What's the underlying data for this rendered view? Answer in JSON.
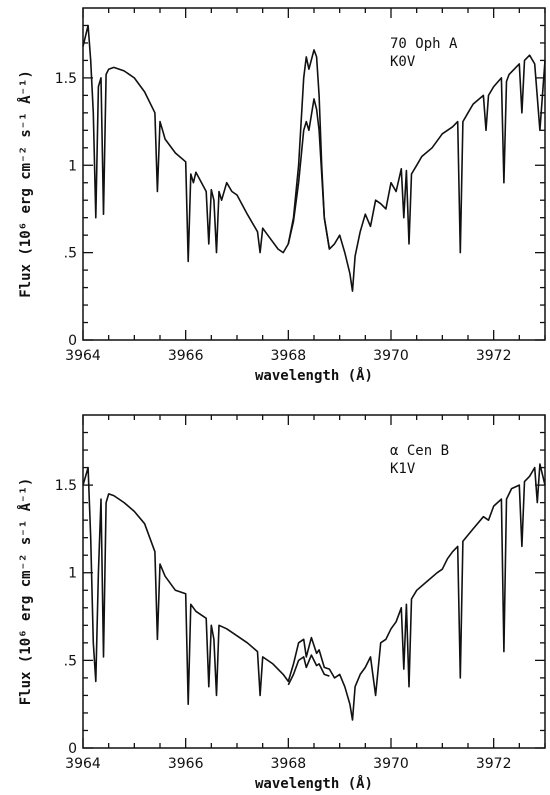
{
  "chart_data": [
    {
      "type": "line",
      "xlabel": "wavelength (Å)",
      "ylabel": "Flux (10⁶ erg cm⁻² s⁻¹ Å⁻¹)",
      "annotation_lines": [
        "70 Oph A",
        "K0V"
      ],
      "xlim": [
        3964,
        3973
      ],
      "ylim": [
        0,
        1.9
      ],
      "xticks": [
        3964,
        3966,
        3968,
        3970,
        3972
      ],
      "xtick_labels": [
        "3964",
        "3966",
        "3968",
        "3970",
        "3972"
      ],
      "yticks": [
        0,
        0.5,
        1,
        1.5
      ],
      "ytick_labels": [
        "0",
        ".5",
        "1",
        "1.5"
      ],
      "grid": false,
      "series": [
        {
          "x": [
            3964.0,
            3964.1,
            3964.15,
            3964.2,
            3964.25,
            3964.3,
            3964.35,
            3964.4,
            3964.45,
            3964.5,
            3964.6,
            3964.8,
            3965.0,
            3965.2,
            3965.4,
            3965.45,
            3965.5,
            3965.55,
            3965.6,
            3965.8,
            3966.0,
            3966.05,
            3966.1,
            3966.15,
            3966.2,
            3966.4,
            3966.45,
            3966.5,
            3966.55,
            3966.6,
            3966.65,
            3966.7,
            3966.8,
            3966.9,
            3967.0,
            3967.2,
            3967.4,
            3967.45,
            3967.5,
            3967.6,
            3967.8,
            3967.9,
            3968.0,
            3968.1,
            3968.2,
            3968.3,
            3968.35,
            3968.4,
            3968.5,
            3968.55,
            3968.6,
            3968.65,
            3968.7,
            3968.8,
            3968.9,
            3969.0,
            3969.1,
            3969.2,
            3969.25,
            3969.3,
            3969.4,
            3969.5,
            3969.6,
            3969.7,
            3969.8,
            3969.9,
            3970.0,
            3970.1,
            3970.2,
            3970.25,
            3970.3,
            3970.35,
            3970.4,
            3970.5,
            3970.6,
            3970.8,
            3971.0,
            3971.1,
            3971.2,
            3971.3,
            3971.35,
            3971.4,
            3971.5,
            3971.6,
            3971.8,
            3971.85,
            3971.9,
            3972.0,
            3972.15,
            3972.2,
            3972.25,
            3972.3,
            3972.4,
            3972.5,
            3972.55,
            3972.6,
            3972.7,
            3972.8,
            3972.9,
            3973.0
          ],
          "y": [
            1.68,
            1.8,
            1.6,
            1.3,
            0.7,
            1.45,
            1.5,
            0.72,
            1.52,
            1.55,
            1.56,
            1.54,
            1.5,
            1.42,
            1.3,
            0.85,
            1.25,
            1.2,
            1.15,
            1.07,
            1.02,
            0.45,
            0.95,
            0.9,
            0.96,
            0.85,
            0.55,
            0.86,
            0.8,
            0.5,
            0.85,
            0.8,
            0.9,
            0.85,
            0.83,
            0.72,
            0.62,
            0.5,
            0.64,
            0.6,
            0.52,
            0.5,
            0.55,
            0.7,
            1.0,
            1.5,
            1.62,
            1.55,
            1.66,
            1.62,
            1.4,
            1.0,
            0.7,
            0.52,
            0.55,
            0.6,
            0.5,
            0.38,
            0.28,
            0.48,
            0.62,
            0.72,
            0.65,
            0.8,
            0.78,
            0.75,
            0.9,
            0.85,
            0.98,
            0.7,
            0.97,
            0.55,
            0.95,
            1.0,
            1.05,
            1.1,
            1.18,
            1.2,
            1.22,
            1.25,
            0.5,
            1.25,
            1.3,
            1.35,
            1.4,
            1.2,
            1.4,
            1.45,
            1.5,
            0.9,
            1.48,
            1.52,
            1.55,
            1.58,
            1.3,
            1.6,
            1.63,
            1.58,
            1.2,
            1.6
          ]
        },
        {
          "x": [
            3968.0,
            3968.1,
            3968.2,
            3968.3,
            3968.35,
            3968.4,
            3968.5,
            3968.55,
            3968.6,
            3968.65,
            3968.7,
            3968.8
          ],
          "y": [
            0.55,
            0.68,
            0.9,
            1.2,
            1.25,
            1.2,
            1.38,
            1.32,
            1.2,
            0.95,
            0.7,
            0.52
          ]
        }
      ]
    },
    {
      "type": "line",
      "xlabel": "wavelength (Å)",
      "ylabel": "Flux (10⁶ erg cm⁻² s⁻¹ Å⁻¹)",
      "annotation_lines": [
        "α Cen B",
        "K1V"
      ],
      "xlim": [
        3964,
        3973
      ],
      "ylim": [
        0,
        1.9
      ],
      "xticks": [
        3964,
        3966,
        3968,
        3970,
        3972
      ],
      "xtick_labels": [
        "3964",
        "3966",
        "3968",
        "3970",
        "3972"
      ],
      "yticks": [
        0,
        0.5,
        1,
        1.5
      ],
      "ytick_labels": [
        "0",
        ".5",
        "1",
        "1.5"
      ],
      "grid": false,
      "series": [
        {
          "x": [
            3964.0,
            3964.1,
            3964.15,
            3964.2,
            3964.25,
            3964.3,
            3964.35,
            3964.4,
            3964.45,
            3964.5,
            3964.6,
            3964.8,
            3965.0,
            3965.2,
            3965.4,
            3965.45,
            3965.5,
            3965.6,
            3965.8,
            3966.0,
            3966.05,
            3966.1,
            3966.2,
            3966.4,
            3966.45,
            3966.5,
            3966.55,
            3966.6,
            3966.65,
            3966.8,
            3967.0,
            3967.2,
            3967.4,
            3967.45,
            3967.5,
            3967.7,
            3967.9,
            3968.0,
            3968.1,
            3968.2,
            3968.3,
            3968.35,
            3968.45,
            3968.55,
            3968.6,
            3968.7,
            3968.8,
            3968.9,
            3969.0,
            3969.1,
            3969.2,
            3969.25,
            3969.3,
            3969.4,
            3969.5,
            3969.6,
            3969.7,
            3969.8,
            3969.9,
            3970.0,
            3970.1,
            3970.2,
            3970.25,
            3970.3,
            3970.35,
            3970.4,
            3970.5,
            3970.7,
            3970.9,
            3971.0,
            3971.1,
            3971.2,
            3971.3,
            3971.35,
            3971.4,
            3971.6,
            3971.8,
            3971.9,
            3972.0,
            3972.15,
            3972.2,
            3972.25,
            3972.35,
            3972.5,
            3972.55,
            3972.6,
            3972.7,
            3972.8,
            3972.85,
            3972.9,
            3973.0
          ],
          "y": [
            1.5,
            1.6,
            1.2,
            0.6,
            0.38,
            1.0,
            1.42,
            0.52,
            1.4,
            1.45,
            1.44,
            1.4,
            1.35,
            1.28,
            1.12,
            0.62,
            1.05,
            0.98,
            0.9,
            0.88,
            0.25,
            0.82,
            0.78,
            0.74,
            0.35,
            0.7,
            0.62,
            0.3,
            0.7,
            0.68,
            0.64,
            0.6,
            0.55,
            0.3,
            0.52,
            0.48,
            0.42,
            0.38,
            0.48,
            0.6,
            0.62,
            0.52,
            0.63,
            0.54,
            0.56,
            0.46,
            0.45,
            0.4,
            0.42,
            0.35,
            0.25,
            0.16,
            0.35,
            0.42,
            0.46,
            0.52,
            0.3,
            0.6,
            0.62,
            0.68,
            0.72,
            0.8,
            0.45,
            0.82,
            0.35,
            0.85,
            0.9,
            0.95,
            1.0,
            1.02,
            1.08,
            1.12,
            1.15,
            0.4,
            1.18,
            1.25,
            1.32,
            1.3,
            1.38,
            1.42,
            0.55,
            1.42,
            1.48,
            1.5,
            1.15,
            1.52,
            1.55,
            1.6,
            1.4,
            1.62,
            1.5
          ]
        },
        {
          "x": [
            3968.0,
            3968.1,
            3968.2,
            3968.3,
            3968.35,
            3968.45,
            3968.55,
            3968.6,
            3968.7,
            3968.8
          ],
          "y": [
            0.36,
            0.42,
            0.5,
            0.52,
            0.46,
            0.53,
            0.47,
            0.48,
            0.42,
            0.41
          ]
        }
      ]
    }
  ]
}
